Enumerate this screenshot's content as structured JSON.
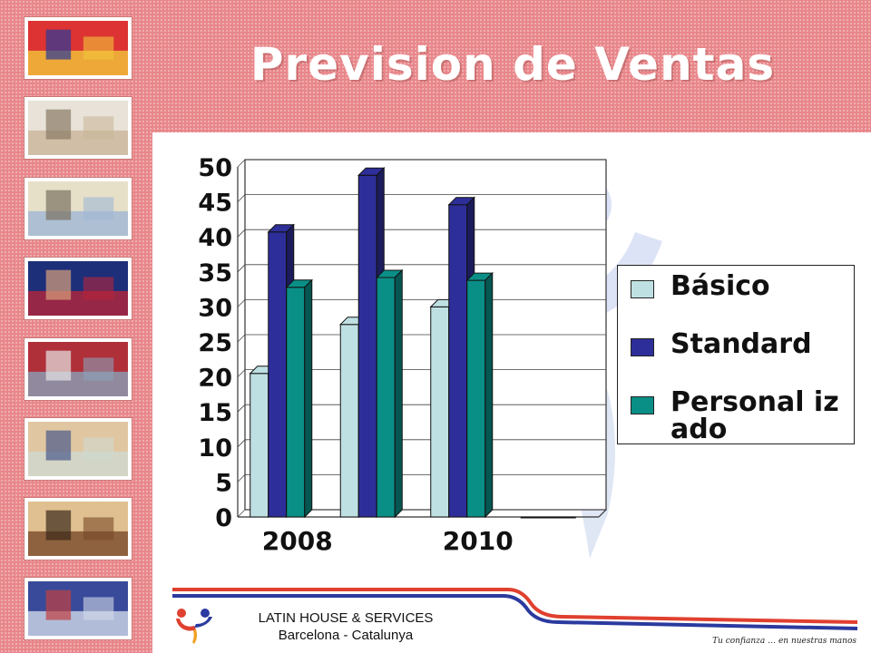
{
  "slide": {
    "title": "Prevision de Ventas",
    "thumbnails": [
      {
        "icon": "flags-icon"
      },
      {
        "icon": "hotel-lobby-icon"
      },
      {
        "icon": "gaudi-building-icon"
      },
      {
        "icon": "football-players-icon"
      },
      {
        "icon": "train-icon"
      },
      {
        "icon": "id-card-icon"
      },
      {
        "icon": "bedroom-icon"
      },
      {
        "icon": "group-photo-icon"
      }
    ]
  },
  "footer": {
    "company_name": "LATIN HOUSE & SERVICES",
    "location": "Barcelona - Catalunya",
    "tagline": "Tu confianza … en nuestras manos"
  },
  "chart_data": {
    "type": "bar",
    "categories": [
      "2008",
      "",
      "2010",
      ""
    ],
    "tick_labels_x": [
      "2008",
      "2010"
    ],
    "series": [
      {
        "name": "Básico",
        "values": [
          20.5,
          27.5,
          30,
          null
        ],
        "color": "#bfe0e2"
      },
      {
        "name": "Standard",
        "values": [
          40.7,
          48.8,
          44.6,
          null
        ],
        "color": "#2e2e9a"
      },
      {
        "name": "Personal izado",
        "values": [
          32.8,
          34.2,
          33.8,
          null
        ],
        "color": "#0a8f87"
      }
    ],
    "ylim": [
      0,
      50
    ],
    "yticks": [
      "0",
      "5",
      "10",
      "15",
      "20",
      "25",
      "30",
      "35",
      "40",
      "45",
      "50"
    ],
    "grid": true,
    "legend_position": "right",
    "style": "3d-column"
  }
}
